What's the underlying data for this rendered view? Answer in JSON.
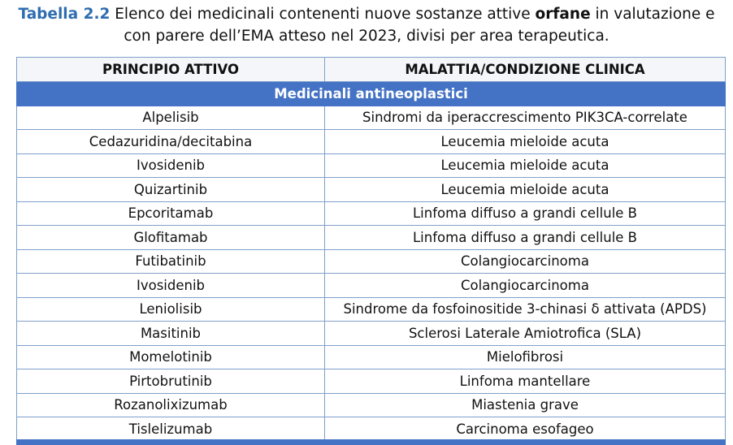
{
  "caption": {
    "label": "Tabella 2.2",
    "parts": [
      "Elenco dei medicinali contenenti nuove sostanze attive",
      "orfane",
      "in valutazione e con parere dell’EMA atteso nel 2023, divisi per area terapeutica."
    ]
  },
  "table": {
    "header": [
      "PRINCIPIO ATTIVO",
      "MALATTIA/CONDIZIONE CLINICA"
    ],
    "section": "Medicinali antineoplastici",
    "rows": [
      [
        "Alpelisib",
        "Sindromi da iperaccrescimento PIK3CA-correlate"
      ],
      [
        "Cedazuridina/decitabina",
        "Leucemia mieloide acuta"
      ],
      [
        "Ivosidenib",
        "Leucemia mieloide acuta"
      ],
      [
        "Quizartinib",
        "Leucemia mieloide acuta"
      ],
      [
        "Epcoritamab",
        "Linfoma diffuso a grandi cellule B"
      ],
      [
        "Glofitamab",
        "Linfoma diffuso a grandi cellule B"
      ],
      [
        "Futibatinib",
        "Colangiocarcinoma"
      ],
      [
        "Ivosidenib",
        "Colangiocarcinoma"
      ],
      [
        "Leniolisib",
        "Sindrome da fosfoinositide 3-chinasi δ attivata (APDS)"
      ],
      [
        "Masitinib",
        "Sclerosi Laterale Amiotrofica (SLA)"
      ],
      [
        "Momelotinib",
        "Mielofibrosi"
      ],
      [
        "Pirtobrutinib",
        "Linfoma mantellare"
      ],
      [
        "Rozanolixizumab",
        "Miastenia grave"
      ],
      [
        "Tislelizumab",
        "Carcinoma esofageo"
      ]
    ]
  }
}
